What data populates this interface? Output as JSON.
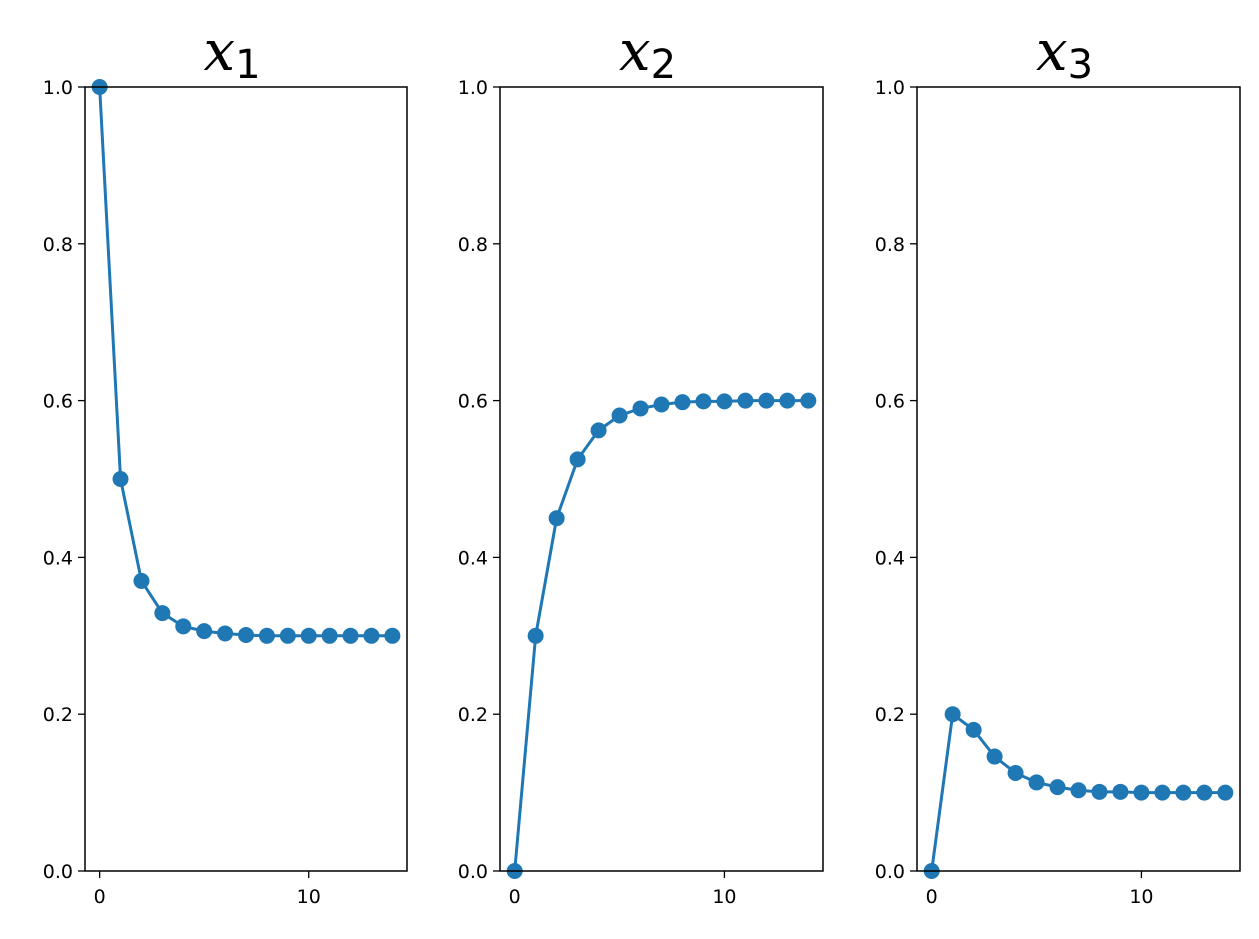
{
  "chart_data": [
    {
      "type": "line",
      "title": "x",
      "title_subscript": "1",
      "x": [
        0,
        1,
        2,
        3,
        4,
        5,
        6,
        7,
        8,
        9,
        10,
        11,
        12,
        13,
        14
      ],
      "series": [
        {
          "values": [
            1.0,
            0.5,
            0.37,
            0.329,
            0.312,
            0.306,
            0.303,
            0.301,
            0.3,
            0.3,
            0.3,
            0.3,
            0.3,
            0.3,
            0.3
          ]
        }
      ],
      "xlim": [
        -0.7,
        14.7
      ],
      "ylim": [
        0,
        1
      ],
      "xticks": [
        0,
        10
      ],
      "yticks": [
        "0.0",
        "0.2",
        "0.4",
        "0.6",
        "0.8",
        "1.0"
      ],
      "grid": false,
      "markers": true,
      "color": "#1f77b4"
    },
    {
      "type": "line",
      "title": "x",
      "title_subscript": "2",
      "x": [
        0,
        1,
        2,
        3,
        4,
        5,
        6,
        7,
        8,
        9,
        10,
        11,
        12,
        13,
        14
      ],
      "series": [
        {
          "values": [
            0.0,
            0.3,
            0.45,
            0.525,
            0.562,
            0.581,
            0.59,
            0.595,
            0.598,
            0.599,
            0.599,
            0.6,
            0.6,
            0.6,
            0.6
          ]
        }
      ],
      "xlim": [
        -0.7,
        14.7
      ],
      "ylim": [
        0,
        1
      ],
      "xticks": [
        0,
        10
      ],
      "yticks": [
        "0.0",
        "0.2",
        "0.4",
        "0.6",
        "0.8",
        "1.0"
      ],
      "grid": false,
      "markers": true,
      "color": "#1f77b4"
    },
    {
      "type": "line",
      "title": "x",
      "title_subscript": "3",
      "x": [
        0,
        1,
        2,
        3,
        4,
        5,
        6,
        7,
        8,
        9,
        10,
        11,
        12,
        13,
        14
      ],
      "series": [
        {
          "values": [
            0.0,
            0.2,
            0.18,
            0.146,
            0.125,
            0.113,
            0.107,
            0.103,
            0.101,
            0.101,
            0.1,
            0.1,
            0.1,
            0.1,
            0.1
          ]
        }
      ],
      "xlim": [
        -0.7,
        14.7
      ],
      "ylim": [
        0,
        1
      ],
      "xticks": [
        0,
        10
      ],
      "yticks": [
        "0.0",
        "0.2",
        "0.4",
        "0.6",
        "0.8",
        "1.0"
      ],
      "grid": false,
      "markers": true,
      "color": "#1f77b4"
    }
  ]
}
